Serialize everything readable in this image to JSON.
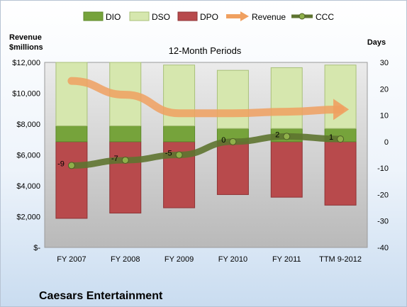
{
  "company": "Caesars Entertainment",
  "chart_data": {
    "type": "bar",
    "title": "12-Month Periods",
    "left_axis_title_line1": "Revenue",
    "left_axis_title_line2": "$millions",
    "right_axis_title": "Days",
    "categories": [
      "FY 2007",
      "FY 2008",
      "FY 2009",
      "FY 2010",
      "FY 2011",
      "TTM 9-2012"
    ],
    "left_axis": {
      "min": 0,
      "max": 12000,
      "step": 2000,
      "tick_labels": [
        "$-",
        "$2,000",
        "$4,000",
        "$6,000",
        "$8,000",
        "$10,000",
        "$12,000"
      ]
    },
    "right_axis": {
      "min": -40,
      "max": 30,
      "step": 10,
      "tick_labels": [
        "-40",
        "-30",
        "-20",
        "-10",
        "0",
        "10",
        "20",
        "30"
      ]
    },
    "stacking": "DPO stacked downward from 0 days; DIO and DSO stacked upward from 0 days",
    "series": [
      {
        "name": "DIO",
        "axis": "right",
        "color": "#76a33b",
        "values": [
          6,
          6,
          6,
          5,
          5,
          5
        ]
      },
      {
        "name": "DSO",
        "axis": "right",
        "color": "#d6e7ae",
        "values": [
          24,
          24,
          23,
          22,
          23,
          24
        ]
      },
      {
        "name": "DPO",
        "axis": "right",
        "color": "#b84a4c",
        "values": [
          -29,
          -27,
          -25,
          -20,
          -21,
          -24
        ]
      },
      {
        "name": "Revenue",
        "axis": "left",
        "type": "arrow-line",
        "color": "#f0a060",
        "values": [
          10800,
          9900,
          8700,
          8700,
          8800,
          8950
        ]
      },
      {
        "name": "CCC",
        "axis": "right",
        "type": "line",
        "color": "#5e7430",
        "values": [
          -9,
          -7,
          -5,
          0,
          2,
          1
        ],
        "data_labels": [
          "-9",
          "-7",
          "-5",
          "0",
          "2",
          "1"
        ]
      }
    ],
    "legend_position": "top",
    "grid": false
  }
}
